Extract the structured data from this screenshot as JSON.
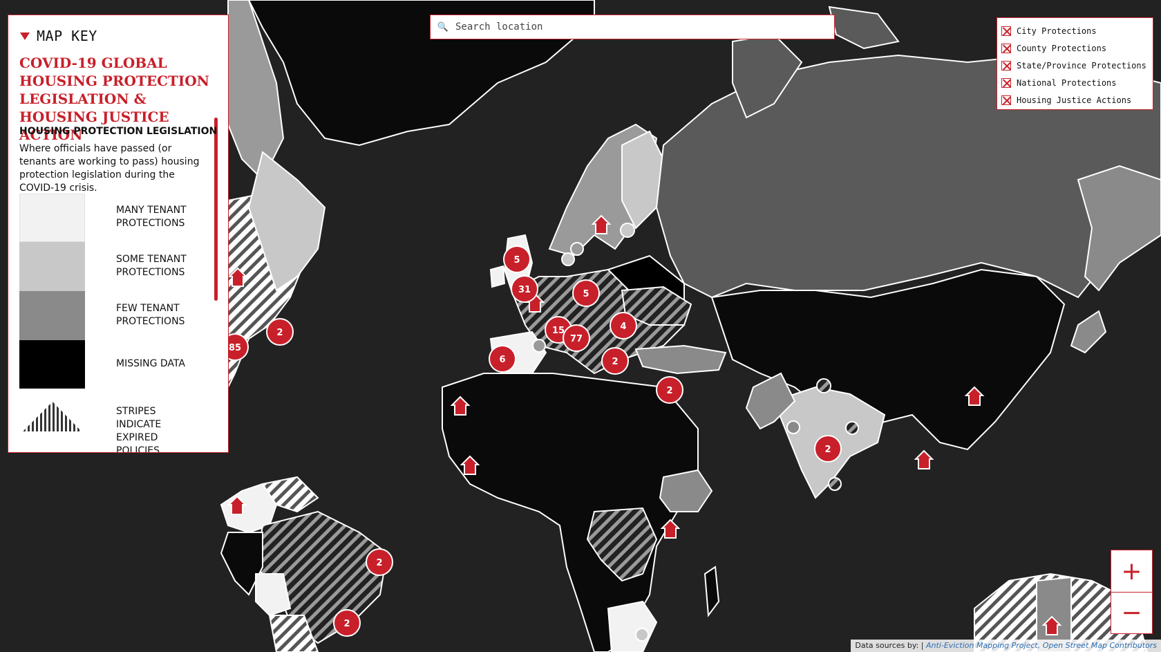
{
  "search": {
    "placeholder": "Search location"
  },
  "layers": [
    {
      "label": "City Protections",
      "checked": true
    },
    {
      "label": "County Protections",
      "checked": true
    },
    {
      "label": "State/Province Protections",
      "checked": true
    },
    {
      "label": "National Protections",
      "checked": true
    },
    {
      "label": "Housing Justice Actions",
      "checked": true
    }
  ],
  "map_key": {
    "header": "MAP KEY",
    "title": "COVID-19 GLOBAL HOUSING PROTECTION LEGISLATION & HOUSING JUSTICE ACTION",
    "section_heading": "HOUSING PROTECTION LEGISLATION",
    "section_description": "Where officials have passed (or tenants are working to pass) housing protection legislation during the COVID-19 crisis.",
    "legend": [
      {
        "label": "MANY TENANT PROTECTIONS",
        "color": "#f2f2f2"
      },
      {
        "label": "SOME TENANT PROTECTIONS",
        "color": "#c8c8c8"
      },
      {
        "label": "FEW TENANT PROTECTIONS",
        "color": "#8a8a8a"
      },
      {
        "label": "MISSING DATA",
        "color": "#000000"
      },
      {
        "label": "STRIPES INDICATE EXPIRED POLICIES",
        "color": "striped"
      }
    ]
  },
  "clusters": [
    "5",
    "31",
    "5",
    "15",
    "77",
    "4",
    "2",
    "6",
    "2",
    "2",
    "85",
    "2",
    "2",
    "2"
  ],
  "zoom": {
    "in": "+",
    "out": "−"
  },
  "attribution": {
    "prefix": "Data sources by: |",
    "sources": "Anti-Eviction Mapping Project, Open Street Map Contributors"
  },
  "colors": {
    "accent": "#c8202a",
    "ocean": "#222222",
    "many": "#f2f2f2",
    "some": "#c8c8c8",
    "few": "#8a8a8a",
    "missing": "#000000"
  }
}
